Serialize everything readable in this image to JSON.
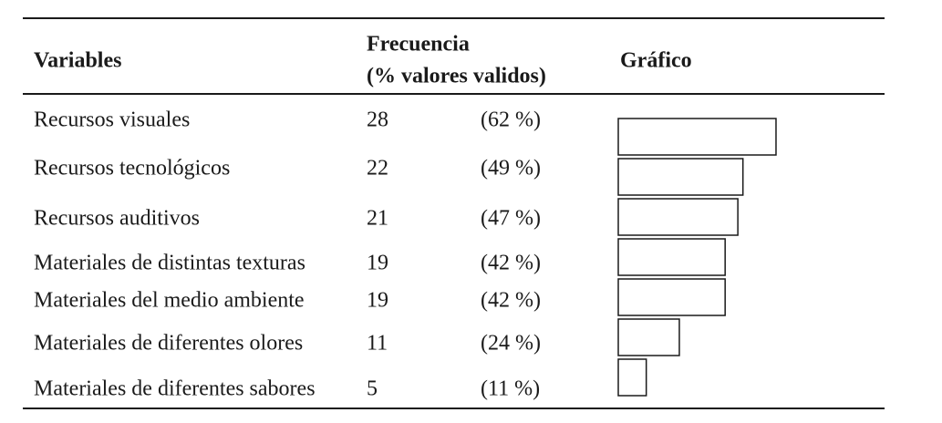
{
  "table": {
    "header": {
      "variables": "Variables",
      "frequency": [
        "Frecuencia",
        "(% valores validos)"
      ],
      "graphic": "Gráfico"
    },
    "rows": [
      {
        "label": "Recursos visuales",
        "count": 28,
        "percent": {
          "value": 62,
          "label": "(62 %)"
        }
      },
      {
        "label": "Recursos tecnológicos",
        "count": 22,
        "percent": {
          "value": 49,
          "label": "(49 %)"
        }
      },
      {
        "label": "Recursos auditivos",
        "count": 21,
        "percent": {
          "value": 47,
          "label": "(47 %)"
        }
      },
      {
        "label": "Materiales de distintas texturas",
        "count": 19,
        "percent": {
          "value": 42,
          "label": "(42 %)"
        }
      },
      {
        "label": "Materiales del medio ambiente",
        "count": 19,
        "percent": {
          "value": 42,
          "label": "(42 %)"
        }
      },
      {
        "label": "Materiales de diferentes olores",
        "count": 11,
        "percent": {
          "value": 24,
          "label": "(24 %)"
        }
      },
      {
        "label": "Materiales de diferentes sabores",
        "count": 5,
        "percent": {
          "value": 11,
          "label": "(11 %)"
        }
      }
    ]
  }
}
